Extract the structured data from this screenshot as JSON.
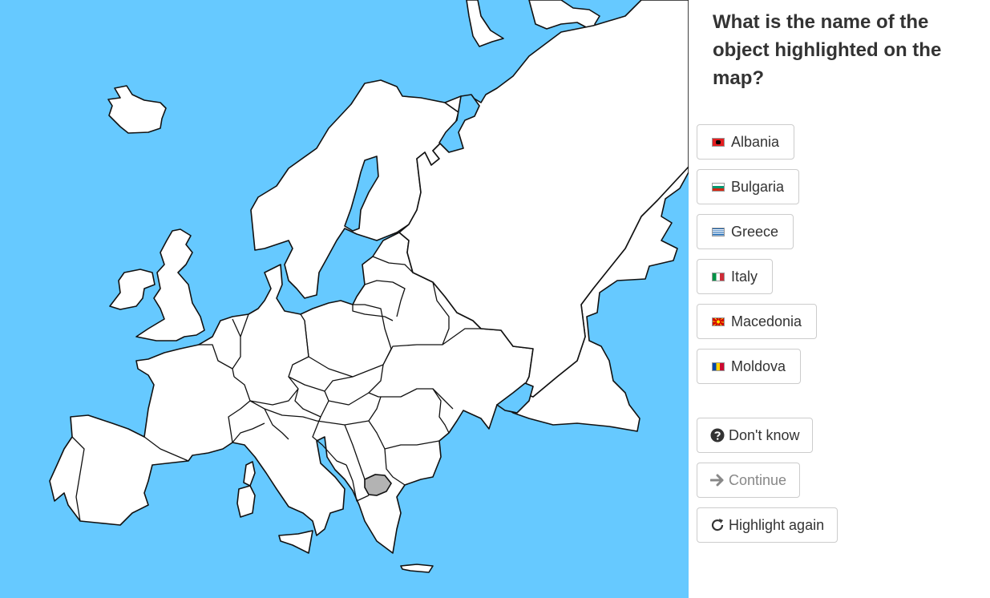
{
  "question": "What is the name of the object highlighted on the map?",
  "answers": [
    {
      "label": "Albania",
      "flag_colors": [
        "#e41e20",
        "#000000"
      ]
    },
    {
      "label": "Bulgaria",
      "flag_colors": [
        "#ffffff",
        "#00966e",
        "#d62612"
      ]
    },
    {
      "label": "Greece",
      "flag_colors": [
        "#0d5eaf",
        "#ffffff"
      ]
    },
    {
      "label": "Italy",
      "flag_colors": [
        "#009246",
        "#ffffff",
        "#ce2b37"
      ]
    },
    {
      "label": "Macedonia",
      "flag_colors": [
        "#d20000",
        "#ffe600"
      ]
    },
    {
      "label": "Moldova",
      "flag_colors": [
        "#0046ae",
        "#ffd200",
        "#cc092f"
      ]
    }
  ],
  "actions": {
    "dont_know": {
      "label": "Don't know",
      "icon": "question-circle-icon"
    },
    "continue": {
      "label": "Continue",
      "icon": "arrow-right-icon",
      "disabled": true
    },
    "highlight_again": {
      "label": "Highlight again",
      "icon": "redo-icon"
    }
  },
  "map": {
    "sea_color": "#66c9ff",
    "land_color": "#ffffff",
    "highlight_color": "#b3b3b3"
  }
}
